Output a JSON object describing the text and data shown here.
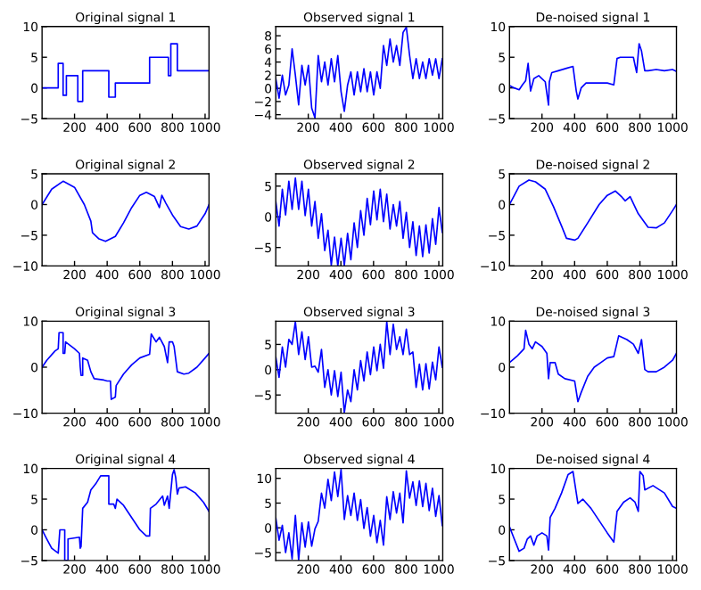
{
  "chart_data": [
    {
      "type": "line",
      "title": "Original signal 1",
      "color": "#0000ff",
      "xlim": [
        1,
        1024
      ],
      "xticks": [
        200,
        400,
        600,
        800,
        1000
      ],
      "ylim": [
        -5,
        10
      ],
      "yticks": [
        -5,
        0,
        5,
        10
      ],
      "grid": false,
      "x": [
        1,
        100,
        100,
        130,
        130,
        150,
        150,
        220,
        220,
        250,
        250,
        410,
        410,
        450,
        450,
        660,
        660,
        775,
        775,
        790,
        790,
        830,
        830,
        1024
      ],
      "values": [
        0,
        0,
        4,
        4,
        -1.2,
        -1.2,
        2,
        2,
        -2.2,
        -2.2,
        2.8,
        2.8,
        -1.5,
        -1.5,
        0.8,
        0.8,
        5,
        5,
        2,
        2,
        7.2,
        7.2,
        2.8,
        2.8
      ]
    },
    {
      "type": "line",
      "title": "Observed signal 1",
      "color": "#0000ff",
      "xlim": [
        1,
        1024
      ],
      "xticks": [
        200,
        400,
        600,
        800,
        1000
      ],
      "ylim": [
        -4.6,
        9.4
      ],
      "yticks": [
        -4,
        -2,
        0,
        2,
        4,
        6,
        8
      ],
      "grid": false,
      "x": [
        1,
        21,
        41,
        61,
        81,
        101,
        121,
        141,
        161,
        181,
        201,
        221,
        241,
        261,
        281,
        301,
        321,
        341,
        361,
        381,
        401,
        421,
        441,
        461,
        481,
        501,
        521,
        541,
        561,
        581,
        601,
        621,
        641,
        661,
        681,
        701,
        721,
        741,
        761,
        781,
        801,
        821,
        841,
        861,
        881,
        901,
        921,
        941,
        961,
        981,
        1001,
        1021
      ],
      "values": [
        1.5,
        -1.5,
        2,
        -1,
        0.5,
        6,
        2,
        -2.5,
        3.5,
        0.5,
        3.5,
        -3,
        -4.5,
        5,
        1,
        4,
        0.5,
        4.5,
        1,
        5,
        -0.5,
        -3.5,
        0.5,
        2.5,
        -1,
        2.5,
        -0.5,
        3,
        -0.5,
        2.5,
        -1,
        2.5,
        0,
        6.5,
        3.5,
        7.5,
        4,
        6.5,
        3.5,
        8.5,
        9.3,
        5,
        1.5,
        4.5,
        1.5,
        4,
        1.5,
        4.5,
        2,
        4.5,
        1.5,
        4.5
      ]
    },
    {
      "type": "line",
      "title": "De-noised signal 1",
      "color": "#0000ff",
      "xlim": [
        1,
        1024
      ],
      "xticks": [
        200,
        400,
        600,
        800,
        1000
      ],
      "ylim": [
        -5,
        10
      ],
      "yticks": [
        -5,
        0,
        5,
        10
      ],
      "grid": false,
      "x": [
        1,
        30,
        60,
        80,
        100,
        115,
        130,
        150,
        180,
        200,
        220,
        240,
        245,
        260,
        300,
        350,
        390,
        410,
        420,
        440,
        470,
        600,
        640,
        660,
        680,
        720,
        760,
        780,
        795,
        810,
        830,
        850,
        900,
        950,
        1000,
        1024
      ],
      "values": [
        0.4,
        0,
        -0.3,
        0.5,
        1.2,
        4,
        -0.5,
        1.5,
        2,
        1.5,
        1,
        -2.8,
        1,
        2.5,
        2.8,
        3.2,
        3.5,
        -0.5,
        -1.8,
        0,
        0.8,
        0.8,
        0.5,
        4.8,
        5,
        5,
        5,
        2.5,
        7.2,
        6,
        2.8,
        2.8,
        3,
        2.8,
        3,
        2.7
      ]
    },
    {
      "type": "line",
      "title": "Original signal 2",
      "color": "#0000ff",
      "xlim": [
        1,
        1024
      ],
      "xticks": [
        200,
        400,
        600,
        800,
        1000
      ],
      "ylim": [
        -10,
        5
      ],
      "yticks": [
        -10,
        -5,
        0,
        5
      ],
      "grid": false,
      "x": [
        1,
        60,
        130,
        200,
        260,
        300,
        310,
        350,
        390,
        450,
        500,
        550,
        600,
        640,
        690,
        720,
        735,
        760,
        800,
        850,
        900,
        950,
        1000,
        1024
      ],
      "values": [
        0,
        2.5,
        3.8,
        2.8,
        0,
        -2.7,
        -4.6,
        -5.6,
        -6,
        -5.2,
        -3,
        -0.5,
        1.5,
        2,
        1.3,
        -0.5,
        1.5,
        0.2,
        -1.7,
        -3.6,
        -4,
        -3.5,
        -1.5,
        0
      ]
    },
    {
      "type": "line",
      "title": "Observed signal 2",
      "color": "#0000ff",
      "xlim": [
        1,
        1024
      ],
      "xticks": [
        200,
        400,
        600,
        800,
        1000
      ],
      "ylim": [
        -8,
        7
      ],
      "yticks": [
        -5,
        0,
        5
      ],
      "grid": false,
      "x": [
        1,
        21,
        41,
        61,
        81,
        101,
        121,
        141,
        161,
        181,
        201,
        221,
        241,
        261,
        281,
        301,
        321,
        341,
        361,
        381,
        401,
        421,
        441,
        461,
        481,
        501,
        521,
        541,
        561,
        581,
        601,
        621,
        641,
        661,
        681,
        701,
        721,
        741,
        761,
        781,
        801,
        821,
        841,
        861,
        881,
        901,
        921,
        941,
        961,
        981,
        1001,
        1021
      ],
      "values": [
        2.5,
        -1.5,
        4.5,
        0.3,
        5.8,
        1.2,
        6.3,
        1.2,
        5.8,
        0.2,
        4.5,
        -1.5,
        2.5,
        -3.5,
        0.5,
        -5.5,
        -2.2,
        -7.9,
        -3.3,
        -8,
        -3.5,
        -7.9,
        -2.7,
        -7,
        -1,
        -5,
        1,
        -3,
        3,
        -1.3,
        4.2,
        -0.5,
        4.5,
        -0.8,
        3.7,
        -2,
        2,
        -1.5,
        2.5,
        -3.5,
        0.7,
        -5,
        -0.8,
        -6.3,
        -1.5,
        -6.5,
        -1.3,
        -5.9,
        -0.3,
        -4.5,
        1.5,
        -2.5
      ]
    },
    {
      "type": "line",
      "title": "De-noised signal 2",
      "color": "#0000ff",
      "xlim": [
        1,
        1024
      ],
      "xticks": [
        200,
        400,
        600,
        800,
        1000
      ],
      "ylim": [
        -10,
        5
      ],
      "yticks": [
        -10,
        -5,
        0,
        5
      ],
      "grid": false,
      "x": [
        1,
        60,
        120,
        160,
        220,
        270,
        320,
        350,
        400,
        420,
        480,
        550,
        600,
        650,
        690,
        710,
        740,
        790,
        850,
        900,
        950,
        1000,
        1024
      ],
      "values": [
        0,
        3,
        4,
        3.7,
        2.5,
        -0.3,
        -3.5,
        -5.5,
        -5.8,
        -5.5,
        -3,
        0,
        1.5,
        2.2,
        1.2,
        0.6,
        1.3,
        -1.5,
        -3.7,
        -3.8,
        -3,
        -1,
        0
      ]
    },
    {
      "type": "line",
      "title": "Original signal 3",
      "color": "#0000ff",
      "xlim": [
        1,
        1024
      ],
      "xticks": [
        200,
        400,
        600,
        800,
        1000
      ],
      "ylim": [
        -10,
        10
      ],
      "yticks": [
        -10,
        0,
        10
      ],
      "grid": false,
      "x": [
        1,
        30,
        80,
        100,
        105,
        130,
        130,
        140,
        145,
        200,
        230,
        235,
        240,
        250,
        250,
        280,
        300,
        320,
        380,
        400,
        420,
        425,
        450,
        455,
        500,
        550,
        600,
        660,
        670,
        700,
        720,
        750,
        770,
        780,
        800,
        810,
        830,
        870,
        900,
        950,
        1000,
        1024
      ],
      "values": [
        0,
        1.5,
        3.5,
        4,
        7.5,
        7.5,
        3,
        3,
        5.5,
        4,
        3,
        0,
        -1.8,
        -1.8,
        2,
        1.5,
        -1,
        -2.5,
        -2.8,
        -3,
        -3,
        -7,
        -6.5,
        -4,
        -1.5,
        0.5,
        2,
        2.8,
        7.2,
        5.5,
        6.5,
        4.5,
        1,
        5.5,
        5.5,
        4.5,
        -1,
        -1.5,
        -1.3,
        0,
        2,
        3
      ]
    },
    {
      "type": "line",
      "title": "Observed signal 3",
      "color": "#0000ff",
      "xlim": [
        1,
        1024
      ],
      "xticks": [
        200,
        400,
        600,
        800,
        1000
      ],
      "ylim": [
        -8.6,
        9.6
      ],
      "yticks": [
        -5,
        0,
        5
      ],
      "grid": false,
      "x": [
        1,
        21,
        41,
        61,
        81,
        101,
        121,
        141,
        161,
        181,
        201,
        221,
        241,
        261,
        281,
        301,
        321,
        341,
        361,
        381,
        401,
        421,
        441,
        461,
        481,
        501,
        521,
        541,
        561,
        581,
        601,
        621,
        641,
        661,
        681,
        701,
        721,
        741,
        761,
        781,
        801,
        821,
        841,
        861,
        881,
        901,
        921,
        941,
        961,
        981,
        1001,
        1021
      ],
      "values": [
        2.5,
        -1.5,
        4.5,
        0.5,
        6,
        5,
        9.5,
        3,
        7.5,
        2,
        6.5,
        0.5,
        0.7,
        -0.5,
        4,
        -3.5,
        0,
        -5,
        -0.2,
        -5.3,
        -0.5,
        -8.5,
        -4,
        -6.3,
        0,
        -4,
        1.8,
        -2.2,
        3.5,
        -1,
        4.5,
        -0.2,
        5,
        0.3,
        9.5,
        3,
        9,
        4,
        6.5,
        3,
        8,
        3,
        3.5,
        -3.5,
        1.1,
        -4,
        1.2,
        -3.8,
        1.5,
        -2,
        4.5,
        0.5
      ]
    },
    {
      "type": "line",
      "title": "De-noised signal 3",
      "color": "#0000ff",
      "xlim": [
        1,
        1024
      ],
      "xticks": [
        200,
        400,
        600,
        800,
        1000
      ],
      "ylim": [
        -10,
        10
      ],
      "yticks": [
        -10,
        0,
        10
      ],
      "grid": false,
      "x": [
        1,
        50,
        90,
        100,
        120,
        140,
        160,
        200,
        230,
        240,
        250,
        280,
        300,
        340,
        400,
        420,
        440,
        480,
        520,
        560,
        600,
        640,
        670,
        720,
        760,
        790,
        810,
        830,
        850,
        900,
        950,
        1000,
        1024
      ],
      "values": [
        1,
        2.5,
        4,
        8,
        5,
        4,
        5.5,
        4.5,
        3,
        -2.5,
        1,
        1,
        -1.5,
        -2.5,
        -3,
        -7.5,
        -5.5,
        -2,
        0,
        1,
        2,
        2.3,
        6.8,
        6,
        5,
        3,
        6,
        -0.5,
        -1,
        -1,
        0,
        1.5,
        3
      ]
    },
    {
      "type": "line",
      "title": "Original signal 4",
      "color": "#0000ff",
      "xlim": [
        1,
        1024
      ],
      "xticks": [
        200,
        400,
        600,
        800,
        1000
      ],
      "ylim": [
        -5,
        10
      ],
      "yticks": [
        -5,
        0,
        5,
        10
      ],
      "grid": false,
      "x": [
        1,
        30,
        60,
        100,
        110,
        140,
        140,
        160,
        160,
        230,
        235,
        240,
        250,
        280,
        300,
        330,
        360,
        410,
        410,
        440,
        450,
        460,
        500,
        550,
        600,
        640,
        660,
        665,
        700,
        740,
        750,
        770,
        780,
        800,
        810,
        820,
        830,
        840,
        880,
        940,
        990,
        1024
      ],
      "values": [
        0,
        -1.5,
        -3,
        -3.8,
        0,
        0,
        -5,
        -5,
        -1.5,
        -1.2,
        -3,
        -2.7,
        3.5,
        4.5,
        6.5,
        7.5,
        8.8,
        8.8,
        4.2,
        4.2,
        3.5,
        5,
        4,
        2,
        0,
        -1,
        -1,
        3.5,
        4.2,
        5.5,
        4,
        5.5,
        3.5,
        9,
        9.8,
        8.5,
        5.8,
        6.8,
        7,
        6,
        4.5,
        3
      ]
    },
    {
      "type": "line",
      "title": "Observed signal 4",
      "color": "#0000ff",
      "xlim": [
        1,
        1024
      ],
      "xticks": [
        200,
        400,
        600,
        800,
        1000
      ],
      "ylim": [
        -6.6,
        12
      ],
      "yticks": [
        -5,
        0,
        5,
        10
      ],
      "grid": false,
      "x": [
        1,
        21,
        41,
        61,
        81,
        101,
        121,
        141,
        161,
        181,
        201,
        221,
        241,
        261,
        281,
        301,
        321,
        341,
        361,
        381,
        401,
        421,
        441,
        461,
        481,
        501,
        521,
        541,
        561,
        581,
        601,
        621,
        641,
        661,
        681,
        701,
        721,
        741,
        761,
        781,
        801,
        821,
        841,
        861,
        881,
        901,
        921,
        941,
        961,
        981,
        1001,
        1021
      ],
      "values": [
        2,
        -2.5,
        0.5,
        -5,
        -1,
        -6.3,
        2.5,
        -6.5,
        1,
        -3.9,
        1.2,
        -3.7,
        -0.2,
        1.3,
        7,
        4,
        9.8,
        5.5,
        11.3,
        6.3,
        11.8,
        1.7,
        6.5,
        2.5,
        7,
        1.5,
        5.7,
        -0.1,
        4.1,
        -1.7,
        2.5,
        -3,
        1.5,
        -3.5,
        6.3,
        1.7,
        7.3,
        3,
        7,
        1,
        11.5,
        6,
        9.3,
        4.5,
        9.5,
        4.3,
        9,
        3.5,
        8,
        2.3,
        6.5,
        0.5
      ]
    },
    {
      "type": "line",
      "title": "De-noised signal 4",
      "color": "#0000ff",
      "xlim": [
        1,
        1024
      ],
      "xticks": [
        200,
        400,
        600,
        800,
        1000
      ],
      "ylim": [
        -5,
        10
      ],
      "yticks": [
        -5,
        0,
        5,
        10
      ],
      "grid": false,
      "x": [
        1,
        30,
        60,
        90,
        110,
        130,
        150,
        170,
        200,
        230,
        240,
        250,
        280,
        320,
        360,
        390,
        420,
        450,
        500,
        550,
        600,
        640,
        660,
        700,
        740,
        770,
        790,
        800,
        820,
        830,
        880,
        950,
        1000,
        1024
      ],
      "values": [
        0.5,
        -1.5,
        -3.5,
        -3,
        -1.5,
        -1,
        -2.5,
        -1,
        -0.5,
        -1,
        -3.3,
        2,
        3.5,
        6,
        9,
        9.5,
        4.3,
        5,
        3.5,
        1.5,
        -0.5,
        -2,
        3,
        4.5,
        5.2,
        4.5,
        3,
        9.5,
        8.8,
        6.5,
        7.2,
        6,
        3.8,
        3.5
      ]
    }
  ]
}
